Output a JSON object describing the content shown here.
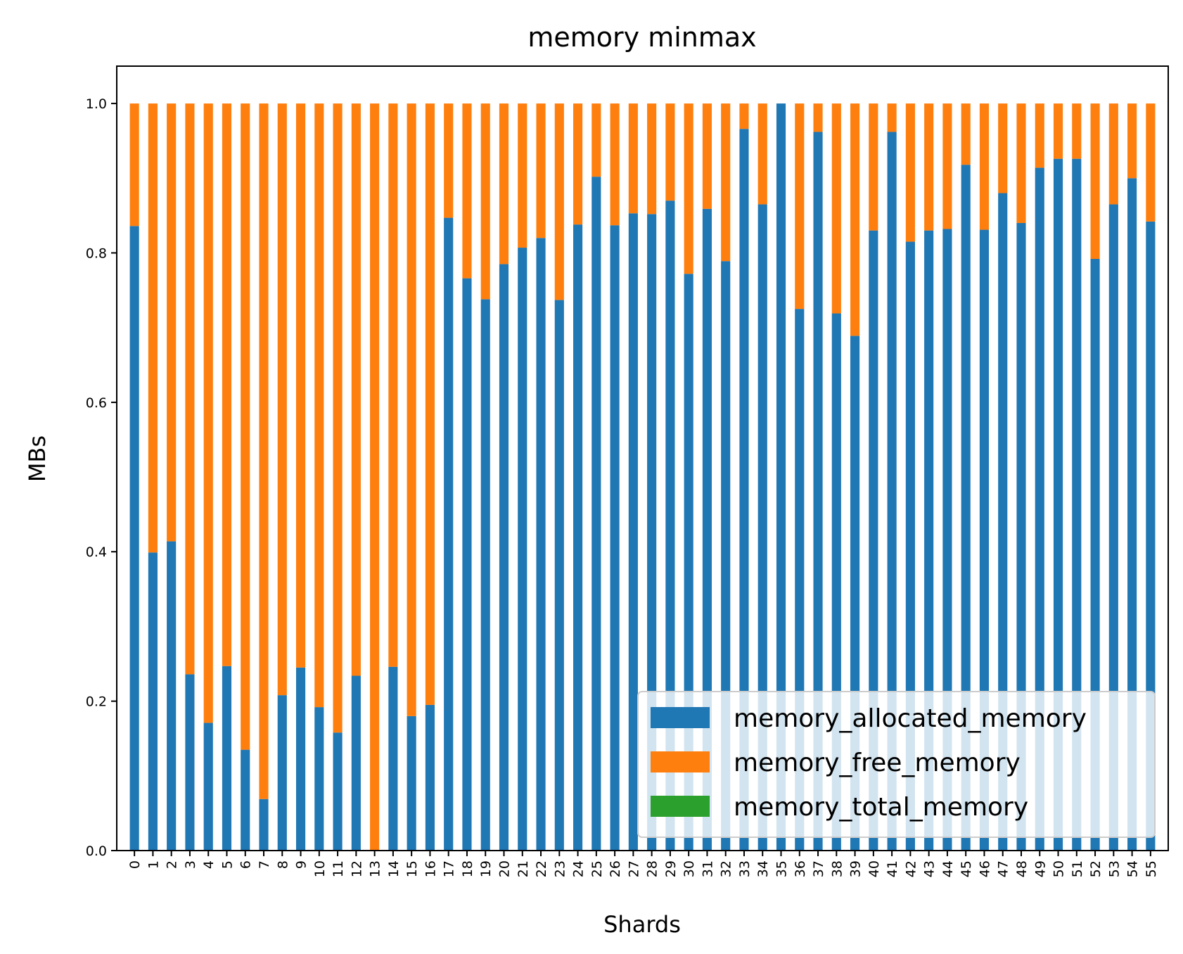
{
  "chart_data": {
    "type": "bar",
    "stacked": true,
    "title": "memory minmax",
    "xlabel": "Shards",
    "ylabel": "MBs",
    "ylim": [
      0.0,
      1.05
    ],
    "yticks": [
      "0.0",
      "0.2",
      "0.4",
      "0.6",
      "0.8",
      "1.0"
    ],
    "grid": false,
    "legend_position": "bottom-right",
    "categories": [
      "0",
      "1",
      "2",
      "3",
      "4",
      "5",
      "6",
      "7",
      "8",
      "9",
      "10",
      "11",
      "12",
      "13",
      "14",
      "15",
      "16",
      "17",
      "18",
      "19",
      "20",
      "21",
      "22",
      "23",
      "24",
      "25",
      "26",
      "27",
      "28",
      "29",
      "30",
      "31",
      "32",
      "33",
      "34",
      "35",
      "36",
      "37",
      "38",
      "39",
      "40",
      "41",
      "42",
      "43",
      "44",
      "45",
      "46",
      "47",
      "48",
      "49",
      "50",
      "51",
      "52",
      "53",
      "54",
      "55"
    ],
    "series": [
      {
        "name": "memory_allocated_memory",
        "color": "#1f77b4",
        "values": [
          0.836,
          0.399,
          0.414,
          0.236,
          0.171,
          0.247,
          0.135,
          0.069,
          0.208,
          0.245,
          0.192,
          0.158,
          0.234,
          0.0,
          0.246,
          0.18,
          0.195,
          0.847,
          0.766,
          0.738,
          0.785,
          0.807,
          0.82,
          0.737,
          0.838,
          0.902,
          0.837,
          0.853,
          0.852,
          0.87,
          0.772,
          0.859,
          0.789,
          0.966,
          0.865,
          1.0,
          0.725,
          0.962,
          0.719,
          0.689,
          0.83,
          0.962,
          0.815,
          0.83,
          0.832,
          0.918,
          0.831,
          0.88,
          0.84,
          0.914,
          0.926,
          0.926,
          0.792,
          0.865,
          0.9,
          0.842
        ]
      },
      {
        "name": "memory_free_memory",
        "color": "#ff7f0e",
        "values": [
          0.164,
          0.601,
          0.586,
          0.764,
          0.829,
          0.753,
          0.865,
          0.931,
          0.792,
          0.755,
          0.808,
          0.842,
          0.766,
          1.0,
          0.754,
          0.82,
          0.805,
          0.153,
          0.234,
          0.262,
          0.215,
          0.193,
          0.18,
          0.263,
          0.162,
          0.098,
          0.163,
          0.147,
          0.148,
          0.13,
          0.228,
          0.141,
          0.211,
          0.034,
          0.135,
          0.0,
          0.275,
          0.038,
          0.281,
          0.311,
          0.17,
          0.038,
          0.185,
          0.17,
          0.168,
          0.082,
          0.169,
          0.12,
          0.16,
          0.086,
          0.074,
          0.074,
          0.208,
          0.135,
          0.1,
          0.158
        ]
      },
      {
        "name": "memory_total_memory",
        "color": "#2ca02c",
        "values": [
          0,
          0,
          0,
          0,
          0,
          0,
          0,
          0,
          0,
          0,
          0,
          0,
          0,
          0,
          0,
          0,
          0,
          0,
          0,
          0,
          0,
          0,
          0,
          0,
          0,
          0,
          0,
          0,
          0,
          0,
          0,
          0,
          0,
          0,
          0,
          0,
          0,
          0,
          0,
          0,
          0,
          0,
          0,
          0,
          0,
          0,
          0,
          0,
          0,
          0,
          0,
          0,
          0,
          0,
          0,
          0
        ]
      }
    ]
  }
}
